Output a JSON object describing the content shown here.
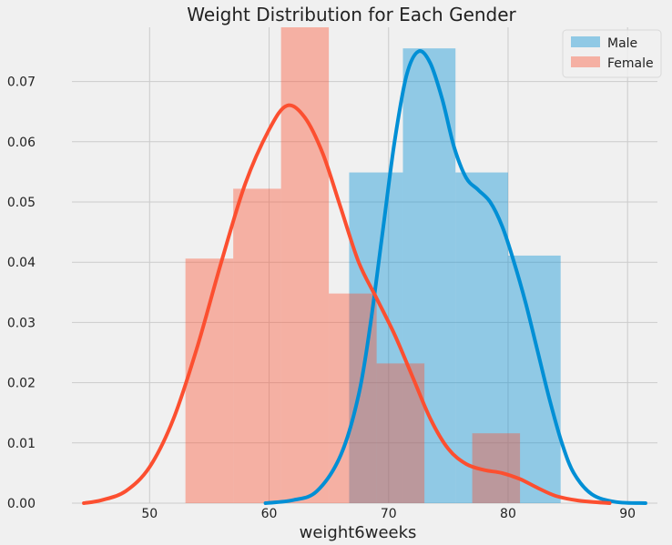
{
  "chart_data": {
    "type": "histogram+kde",
    "title": "Weight Distribution for Each Gender",
    "xlabel": "weight6weeks",
    "ylabel": "",
    "xlim": [
      43.5,
      92.5
    ],
    "ylim": [
      0,
      0.079
    ],
    "xticks": [
      50,
      60,
      70,
      80,
      90
    ],
    "yticks": [
      0.0,
      0.01,
      0.02,
      0.03,
      0.04,
      0.05,
      0.06,
      0.07
    ],
    "ytick_labels": [
      "0.00",
      "0.01",
      "0.02",
      "0.03",
      "0.04",
      "0.05",
      "0.06",
      "0.07"
    ],
    "grid": true,
    "legend_position": "top-right",
    "series": [
      {
        "name": "Male",
        "color": "#008fd5",
        "bar_opacity": 0.4,
        "bins": [
          {
            "x0": 66.7,
            "x1": 71.2,
            "density": 0.0549
          },
          {
            "x0": 71.2,
            "x1": 75.6,
            "density": 0.0755
          },
          {
            "x0": 75.6,
            "x1": 80.0,
            "density": 0.0549
          },
          {
            "x0": 80.0,
            "x1": 84.4,
            "density": 0.0411
          }
        ],
        "kde": [
          [
            59.7,
            0.0
          ],
          [
            62.0,
            0.0005
          ],
          [
            64.0,
            0.002
          ],
          [
            66.0,
            0.008
          ],
          [
            67.5,
            0.018
          ],
          [
            68.5,
            0.03
          ],
          [
            69.5,
            0.045
          ],
          [
            70.5,
            0.06
          ],
          [
            71.5,
            0.071
          ],
          [
            72.5,
            0.075
          ],
          [
            73.5,
            0.073
          ],
          [
            74.5,
            0.067
          ],
          [
            75.5,
            0.059
          ],
          [
            76.5,
            0.054
          ],
          [
            77.5,
            0.052
          ],
          [
            78.5,
            0.05
          ],
          [
            79.5,
            0.046
          ],
          [
            80.5,
            0.04
          ],
          [
            81.5,
            0.033
          ],
          [
            82.5,
            0.025
          ],
          [
            83.5,
            0.017
          ],
          [
            84.5,
            0.01
          ],
          [
            85.5,
            0.005
          ],
          [
            87.0,
            0.0015
          ],
          [
            89.0,
            0.0002
          ],
          [
            91.5,
            0.0
          ]
        ]
      },
      {
        "name": "Female",
        "color": "#fc4f30",
        "bar_opacity": 0.4,
        "bins": [
          {
            "x0": 53.0,
            "x1": 57.0,
            "density": 0.0406
          },
          {
            "x0": 57.0,
            "x1": 61.0,
            "density": 0.0522
          },
          {
            "x0": 61.0,
            "x1": 65.0,
            "density": 0.079
          },
          {
            "x0": 65.0,
            "x1": 69.0,
            "density": 0.0348
          },
          {
            "x0": 69.0,
            "x1": 73.0,
            "density": 0.0232
          },
          {
            "x0": 73.0,
            "x1": 77.0,
            "density": 0.0
          },
          {
            "x0": 77.0,
            "x1": 81.0,
            "density": 0.0116
          }
        ],
        "kde": [
          [
            44.5,
            0.0
          ],
          [
            46.0,
            0.0005
          ],
          [
            48.0,
            0.002
          ],
          [
            50.0,
            0.006
          ],
          [
            52.0,
            0.014
          ],
          [
            54.0,
            0.026
          ],
          [
            56.0,
            0.04
          ],
          [
            58.0,
            0.053
          ],
          [
            60.0,
            0.062
          ],
          [
            61.5,
            0.066
          ],
          [
            63.0,
            0.064
          ],
          [
            64.5,
            0.058
          ],
          [
            66.0,
            0.049
          ],
          [
            67.5,
            0.04
          ],
          [
            69.0,
            0.034
          ],
          [
            70.5,
            0.028
          ],
          [
            72.0,
            0.021
          ],
          [
            73.5,
            0.014
          ],
          [
            75.0,
            0.009
          ],
          [
            76.5,
            0.0065
          ],
          [
            78.0,
            0.0055
          ],
          [
            79.5,
            0.005
          ],
          [
            81.0,
            0.004
          ],
          [
            82.5,
            0.0025
          ],
          [
            84.0,
            0.0012
          ],
          [
            86.0,
            0.0004
          ],
          [
            88.5,
            0.0
          ]
        ]
      }
    ]
  }
}
